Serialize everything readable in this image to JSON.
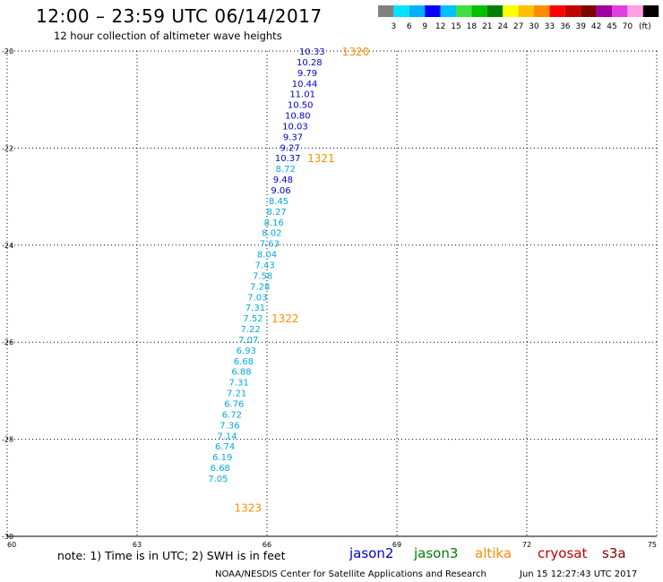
{
  "header": {
    "title": "12:00 – 23:59 UTC 06/14/2017",
    "subtitle": "12 hour collection of altimeter wave heights"
  },
  "color_scale": {
    "colors": [
      "#808080",
      "#00e5ff",
      "#00b0ff",
      "#0000ff",
      "#00bfff",
      "#40e040",
      "#00c000",
      "#008000",
      "#ffff00",
      "#ffc000",
      "#ff8c00",
      "#ff0000",
      "#c00000",
      "#800000",
      "#a000a0",
      "#e040e0",
      "#ffa0e0",
      "#000000"
    ],
    "labels": [
      "3",
      "6",
      "9",
      "12",
      "15",
      "18",
      "21",
      "24",
      "27",
      "30",
      "33",
      "36",
      "39",
      "42",
      "45",
      "70",
      "(ft)"
    ]
  },
  "chart_data": {
    "type": "scatter",
    "xlim": [
      60,
      75
    ],
    "ylim": [
      -30,
      -20
    ],
    "x_ticks": [
      "60",
      "63",
      "66",
      "69",
      "72",
      "75"
    ],
    "y_ticks": [
      "-20",
      "-22",
      "-24",
      "-26",
      "-28",
      "-30"
    ],
    "grid": true,
    "points": [
      {
        "lon": 67.04,
        "lat": -20.0,
        "swh": "10.33",
        "color": "#0000cc"
      },
      {
        "lon": 66.98,
        "lat": -20.22,
        "swh": "10.28",
        "color": "#0000cc"
      },
      {
        "lon": 66.93,
        "lat": -20.44,
        "swh": "9.79",
        "color": "#0000cc"
      },
      {
        "lon": 66.87,
        "lat": -20.66,
        "swh": "10.44",
        "color": "#0000cc"
      },
      {
        "lon": 66.82,
        "lat": -20.88,
        "swh": "11.01",
        "color": "#0000cc"
      },
      {
        "lon": 66.77,
        "lat": -21.1,
        "swh": "10.50",
        "color": "#0000cc"
      },
      {
        "lon": 66.71,
        "lat": -21.32,
        "swh": "10.80",
        "color": "#0000cc"
      },
      {
        "lon": 66.65,
        "lat": -21.54,
        "swh": "10.03",
        "color": "#0000cc"
      },
      {
        "lon": 66.6,
        "lat": -21.76,
        "swh": "9.37",
        "color": "#0000cc"
      },
      {
        "lon": 66.53,
        "lat": -21.98,
        "swh": "9.27",
        "color": "#0000cc"
      },
      {
        "lon": 66.48,
        "lat": -22.2,
        "swh": "10.37",
        "color": "#0000cc"
      },
      {
        "lon": 66.43,
        "lat": -22.42,
        "swh": "8.72",
        "color": "#00aadd"
      },
      {
        "lon": 66.37,
        "lat": -22.64,
        "swh": "9.48",
        "color": "#0000cc"
      },
      {
        "lon": 66.32,
        "lat": -22.86,
        "swh": "9.06",
        "color": "#0000cc"
      },
      {
        "lon": 66.27,
        "lat": -23.08,
        "swh": "8.45",
        "color": "#00aadd"
      },
      {
        "lon": 66.22,
        "lat": -23.3,
        "swh": "8.27",
        "color": "#00aadd"
      },
      {
        "lon": 66.16,
        "lat": -23.52,
        "swh": "8.16",
        "color": "#00aadd"
      },
      {
        "lon": 66.11,
        "lat": -23.74,
        "swh": "8.02",
        "color": "#00aadd"
      },
      {
        "lon": 66.06,
        "lat": -23.96,
        "swh": "7.63",
        "color": "#00aadd"
      },
      {
        "lon": 66.0,
        "lat": -24.18,
        "swh": "8.04",
        "color": "#00aadd"
      },
      {
        "lon": 65.95,
        "lat": -24.4,
        "swh": "7.43",
        "color": "#00aadd"
      },
      {
        "lon": 65.9,
        "lat": -24.62,
        "swh": "7.58",
        "color": "#00aadd"
      },
      {
        "lon": 65.84,
        "lat": -24.84,
        "swh": "7.28",
        "color": "#00aadd"
      },
      {
        "lon": 65.78,
        "lat": -25.06,
        "swh": "7.03",
        "color": "#00aadd"
      },
      {
        "lon": 65.73,
        "lat": -25.28,
        "swh": "7.31",
        "color": "#00aadd"
      },
      {
        "lon": 65.68,
        "lat": -25.5,
        "swh": "7.52",
        "color": "#00aadd"
      },
      {
        "lon": 65.62,
        "lat": -25.72,
        "swh": "7.22",
        "color": "#00aadd"
      },
      {
        "lon": 65.57,
        "lat": -25.94,
        "swh": "7.07",
        "color": "#00aadd"
      },
      {
        "lon": 65.52,
        "lat": -26.16,
        "swh": "6.93",
        "color": "#00aadd"
      },
      {
        "lon": 65.46,
        "lat": -26.38,
        "swh": "6.68",
        "color": "#00aadd"
      },
      {
        "lon": 65.41,
        "lat": -26.6,
        "swh": "6.88",
        "color": "#00aadd"
      },
      {
        "lon": 65.35,
        "lat": -26.82,
        "swh": "7.31",
        "color": "#00aadd"
      },
      {
        "lon": 65.3,
        "lat": -27.04,
        "swh": "7.21",
        "color": "#00aadd"
      },
      {
        "lon": 65.24,
        "lat": -27.26,
        "swh": "6.76",
        "color": "#00aadd"
      },
      {
        "lon": 65.19,
        "lat": -27.48,
        "swh": "6.72",
        "color": "#00aadd"
      },
      {
        "lon": 65.14,
        "lat": -27.7,
        "swh": "7.36",
        "color": "#00aadd"
      },
      {
        "lon": 65.08,
        "lat": -27.92,
        "swh": "7.14",
        "color": "#00aadd"
      },
      {
        "lon": 65.03,
        "lat": -28.14,
        "swh": "6.74",
        "color": "#00aadd"
      },
      {
        "lon": 64.97,
        "lat": -28.36,
        "swh": "6.19",
        "color": "#00aadd"
      },
      {
        "lon": 64.92,
        "lat": -28.58,
        "swh": "6.68",
        "color": "#00aadd"
      },
      {
        "lon": 64.87,
        "lat": -28.8,
        "swh": "7.05",
        "color": "#00aadd"
      }
    ],
    "time_labels": [
      {
        "lon": 68.05,
        "lat": -20.0,
        "text": "1320"
      },
      {
        "lon": 67.25,
        "lat": -22.2,
        "text": "1321"
      },
      {
        "lon": 66.42,
        "lat": -25.5,
        "text": "1322"
      },
      {
        "lon": 65.56,
        "lat": -29.4,
        "text": "1323"
      }
    ],
    "time_label_color": "#ff8c00"
  },
  "footer": {
    "note": "note: 1) Time is in UTC; 2) SWH is in feet",
    "satellites": [
      {
        "name": "jason2",
        "color": "#0000cc"
      },
      {
        "name": "jason3",
        "color": "#008000"
      },
      {
        "name": "altika",
        "color": "#ff8c00"
      },
      {
        "name": "cryosat",
        "color": "#c00000"
      },
      {
        "name": "s3a",
        "color": "#800000"
      }
    ],
    "center": "NOAA/NESDIS Center for Satellite Applications and Research",
    "timestamp": "Jun 15 12:27:43 UTC 2017"
  }
}
